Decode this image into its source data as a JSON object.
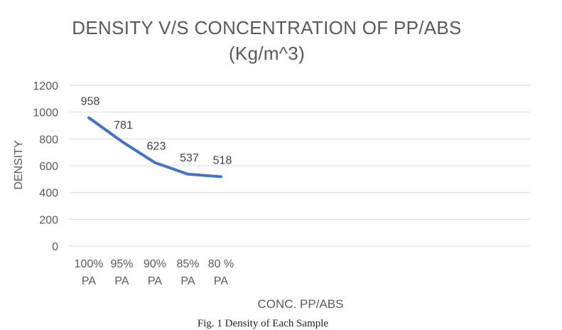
{
  "chart_data": {
    "type": "line",
    "title_lines": [
      "DENSITY V/S CONCENTRATION OF PP/ABS",
      "(Kg/m^3)"
    ],
    "xlabel": "CONC. PP/ABS",
    "ylabel": "DENSITY",
    "categories": [
      [
        "100%",
        "PA"
      ],
      [
        "95%",
        "PA"
      ],
      [
        "90%",
        "PA"
      ],
      [
        "85%",
        "PA"
      ],
      [
        "80 %",
        "PA"
      ]
    ],
    "series": [
      {
        "values": [
          958,
          781,
          623,
          537,
          518
        ],
        "data_labels": [
          "958",
          "781",
          "623",
          "537",
          "518"
        ],
        "color": "#4472C4"
      }
    ],
    "ylim": [
      0,
      1200
    ],
    "yticks": [
      0,
      200,
      400,
      600,
      800,
      1000,
      1200
    ],
    "grid": true,
    "legend": "none"
  },
  "caption": "Fig. 1 Density of Each Sample"
}
